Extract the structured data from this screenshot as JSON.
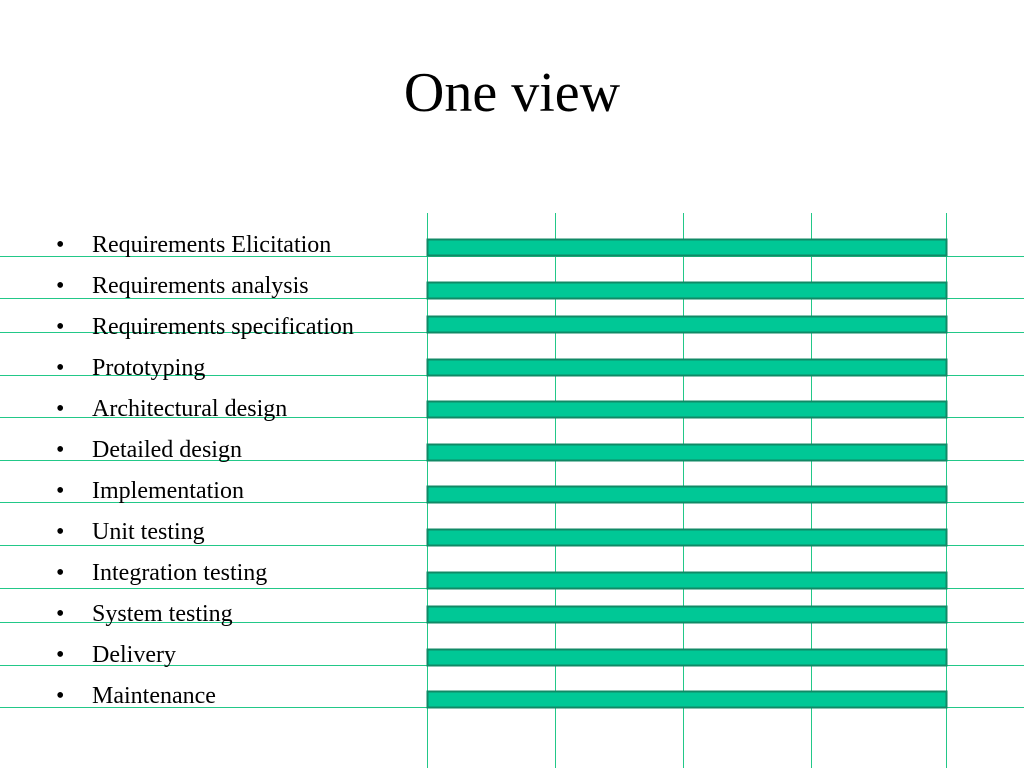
{
  "title": "One view",
  "bullet_glyph": "•",
  "colors": {
    "background": "#ffffff",
    "text": "#000000",
    "grid_line": "#22c888",
    "bar_fill": "#00c896",
    "bar_border": "#108a66"
  },
  "activities": [
    "Requirements Elicitation",
    "Requirements analysis",
    "Requirements specification",
    "Prototyping",
    "Architectural design",
    "Detailed design",
    "Implementation",
    "Unit testing",
    "Integration testing",
    "System testing",
    "Delivery",
    "Maintenance"
  ]
}
